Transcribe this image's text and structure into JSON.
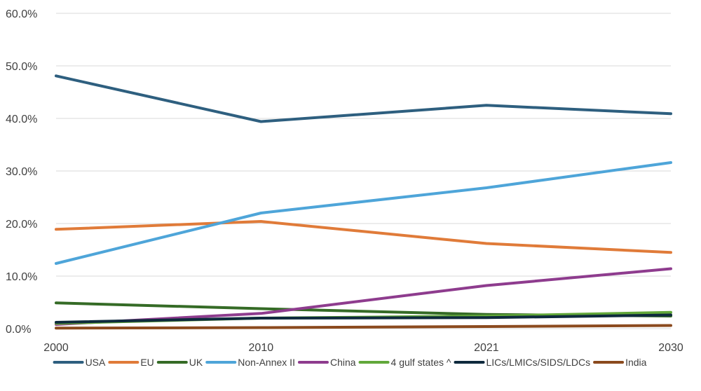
{
  "chart_data": {
    "type": "line",
    "title": "",
    "xlabel": "",
    "ylabel": "",
    "categories": [
      "2000",
      "2010",
      "2021",
      "2030"
    ],
    "x": [
      2000,
      2010,
      2021,
      2030
    ],
    "ylim": [
      0,
      60
    ],
    "yticks": [
      "0.0%",
      "10.0%",
      "20.0%",
      "30.0%",
      "40.0%",
      "50.0%",
      "60.0%"
    ],
    "grid": true,
    "legend_position": "bottom",
    "series": [
      {
        "name": "USA",
        "color": "#2e5f7f",
        "values": [
          48.1,
          39.4,
          42.5,
          40.9
        ]
      },
      {
        "name": "EU",
        "color": "#e07b39",
        "values": [
          18.9,
          20.4,
          16.2,
          14.5
        ]
      },
      {
        "name": "UK",
        "color": "#356b26",
        "values": [
          4.9,
          3.8,
          2.7,
          2.4
        ]
      },
      {
        "name": "Non-Annex II",
        "color": "#4ea5d9",
        "values": [
          12.4,
          22.0,
          26.8,
          31.6
        ]
      },
      {
        "name": "China",
        "color": "#8e3c8e",
        "values": [
          0.8,
          2.9,
          8.2,
          11.4
        ]
      },
      {
        "name": "4 gulf states ^",
        "color": "#62a83a",
        "values": [
          1.0,
          2.0,
          2.4,
          3.1
        ]
      },
      {
        "name": "LICs/LMICs/SIDS/LDCs",
        "color": "#0e2a3d",
        "values": [
          1.2,
          2.0,
          2.1,
          2.6
        ]
      },
      {
        "name": "India",
        "color": "#8b4a1e",
        "values": [
          0.1,
          0.2,
          0.4,
          0.6
        ]
      }
    ]
  }
}
